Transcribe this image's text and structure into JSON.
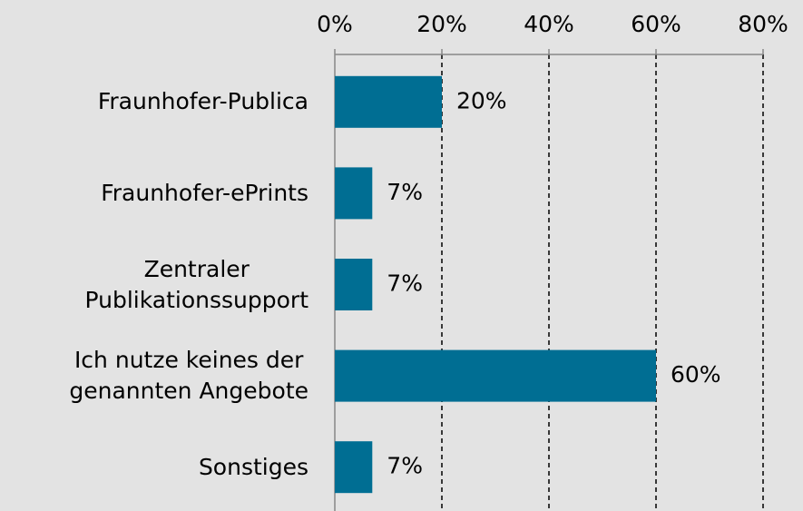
{
  "chart_data": {
    "type": "barh",
    "categories": [
      "Fraunhofer-Publica",
      "Fraunhofer-ePrints",
      "Zentraler\nPublikationssupport",
      "Ich nutze keines der\ngenannten Angebote",
      "Sonstiges"
    ],
    "values": [
      20,
      7,
      7,
      60,
      7
    ],
    "value_labels": [
      "20%",
      "7%",
      "7%",
      "60%",
      "7%"
    ],
    "color": "#006e93",
    "xlim": [
      0,
      80
    ],
    "xticks": [
      {
        "value": 0,
        "label": "0%"
      },
      {
        "value": 20,
        "label": "20%"
      },
      {
        "value": 40,
        "label": "40%"
      },
      {
        "value": 60,
        "label": "60%"
      },
      {
        "value": 80,
        "label": "80%"
      }
    ],
    "grid": true
  }
}
